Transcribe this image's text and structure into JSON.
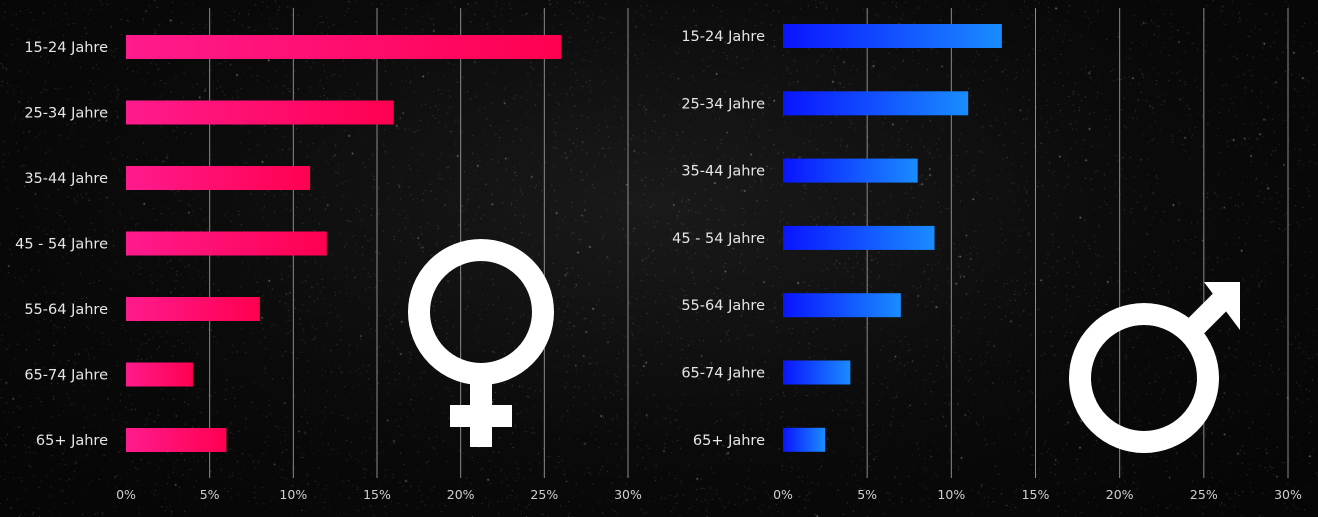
{
  "chart_data": [
    {
      "type": "bar",
      "orientation": "horizontal",
      "categories": [
        "15-24 Jahre",
        "25-34 Jahre",
        "35-44 Jahre",
        "45 - 54 Jahre",
        "55-64 Jahre",
        "65-74 Jahre",
        "65+ Jahre"
      ],
      "values": [
        0.26,
        0.16,
        0.11,
        0.12,
        0.08,
        0.04,
        0.06
      ],
      "xlim": [
        0,
        0.3
      ],
      "xticks": [
        "0%",
        "5%",
        "10%",
        "15%",
        "20%",
        "25%",
        "30%"
      ],
      "grid": "vertical",
      "colors": [
        "#ff1b8d",
        "#ff0050"
      ],
      "symbol": "female-symbol-icon"
    },
    {
      "type": "bar",
      "orientation": "horizontal",
      "categories": [
        "15-24 Jahre",
        "25-34 Jahre",
        "35-44 Jahre",
        "45 - 54 Jahre",
        "55-64 Jahre",
        "65-74 Jahre",
        "65+ Jahre"
      ],
      "values": [
        0.13,
        0.11,
        0.08,
        0.09,
        0.07,
        0.04,
        0.025
      ],
      "xlim": [
        0,
        0.3
      ],
      "xticks": [
        "0%",
        "5%",
        "10%",
        "15%",
        "20%",
        "25%",
        "30%"
      ],
      "grid": "vertical",
      "colors": [
        "#0a14ff",
        "#1a8cff"
      ],
      "symbol": "male-symbol-icon"
    }
  ]
}
